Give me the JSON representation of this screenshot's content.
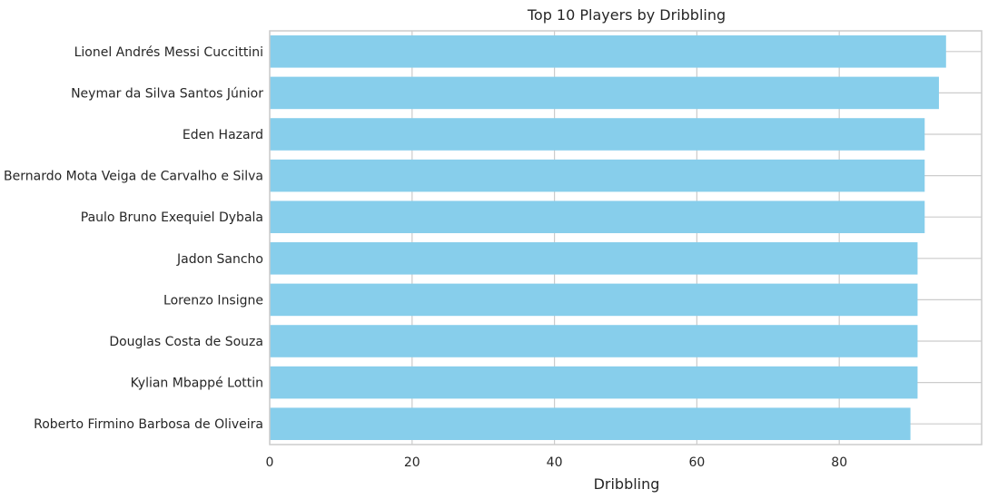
{
  "chart_data": {
    "type": "bar",
    "orientation": "horizontal",
    "title": "Top 10 Players by Dribbling",
    "xlabel": "Dribbling",
    "ylabel": "",
    "categories": [
      "Lionel Andrés Messi Cuccittini",
      "Neymar da Silva Santos Júnior",
      "Eden Hazard",
      "Bernardo Mota Veiga de Carvalho e Silva",
      "Paulo Bruno Exequiel Dybala",
      "Jadon Sancho",
      "Lorenzo Insigne",
      "Douglas Costa de Souza",
      "Kylian Mbappé Lottin",
      "Roberto Firmino Barbosa de Oliveira"
    ],
    "values": [
      95,
      94,
      92,
      92,
      92,
      91,
      91,
      91,
      91,
      90
    ],
    "xlim": [
      0,
      100
    ],
    "xticks": [
      0,
      20,
      40,
      60,
      80
    ],
    "grid": true,
    "colors": {
      "bar": "#87ceeb",
      "grid": "#cccccc",
      "spine": "#cccccc",
      "text": "#262626"
    }
  }
}
